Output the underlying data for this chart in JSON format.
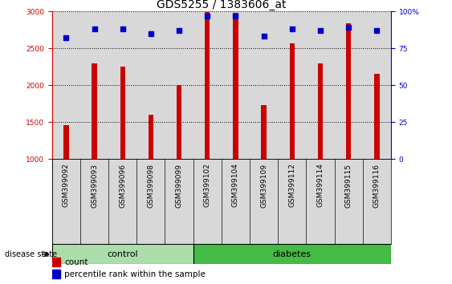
{
  "title": "GDS5255 / 1383606_at",
  "samples": [
    "GSM399092",
    "GSM399093",
    "GSM399096",
    "GSM399098",
    "GSM399099",
    "GSM399102",
    "GSM399104",
    "GSM399109",
    "GSM399112",
    "GSM399114",
    "GSM399115",
    "GSM399116"
  ],
  "counts": [
    1460,
    2300,
    2250,
    1600,
    2000,
    2990,
    2980,
    1730,
    2570,
    2300,
    2840,
    2150
  ],
  "percentiles": [
    82,
    88,
    88,
    85,
    87,
    97,
    97,
    83,
    88,
    87,
    89,
    87
  ],
  "ylim_left": [
    1000,
    3000
  ],
  "ylim_right": [
    0,
    100
  ],
  "yticks_left": [
    1000,
    1500,
    2000,
    2500,
    3000
  ],
  "yticks_right": [
    0,
    25,
    50,
    75,
    100
  ],
  "bar_color": "#cc0000",
  "dot_color": "#0000cc",
  "control_count": 5,
  "diabetes_count": 7,
  "control_color": "#aaddaa",
  "diabetes_color": "#44bb44",
  "group_label_control": "control",
  "group_label_diabetes": "diabetes",
  "disease_state_label": "disease state",
  "legend_count_label": "count",
  "legend_percentile_label": "percentile rank within the sample",
  "plot_bg_color": "#d8d8d8",
  "title_fontsize": 10,
  "tick_fontsize": 6.5,
  "bar_width": 0.18
}
